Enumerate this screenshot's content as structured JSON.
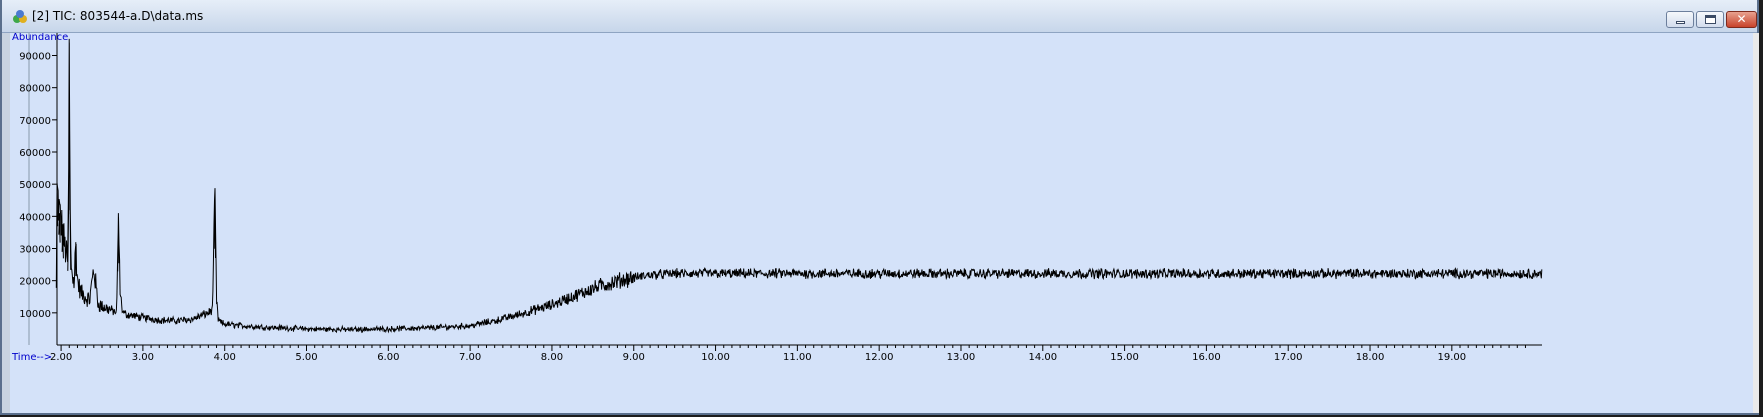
{
  "window": {
    "title": "[2] TIC: 803544-a.D\\data.ms",
    "close_glyph": "✕"
  },
  "icons": {
    "app": "chemstation-app-icon",
    "minimize": "minimize-icon",
    "maximize": "maximize-icon",
    "close": "close-icon"
  },
  "colors": {
    "plot_background": "#d4e2f9",
    "trace": "#000000",
    "axis_label": "#0000cc"
  },
  "chart_data": {
    "type": "line",
    "title": "",
    "xlabel": "Time-->",
    "ylabel": "Abundance",
    "xlim": [
      1.95,
      20.2
    ],
    "ylim": [
      0,
      97000
    ],
    "x_ticks": [
      "2.00",
      "3.00",
      "4.00",
      "5.00",
      "6.00",
      "7.00",
      "8.00",
      "9.00",
      "10.00",
      "11.00",
      "12.00",
      "13.00",
      "14.00",
      "15.00",
      "16.00",
      "17.00",
      "18.00",
      "19.00"
    ],
    "y_ticks": [
      "10000",
      "20000",
      "30000",
      "40000",
      "50000",
      "60000",
      "70000",
      "80000",
      "90000"
    ],
    "grid": false,
    "legend": "none",
    "series": [
      {
        "x": [
          1.95,
          1.98,
          2.02,
          2.05,
          2.08,
          2.09,
          2.1,
          2.11,
          2.12,
          2.14,
          2.16,
          2.18,
          2.2,
          2.22,
          2.25,
          2.3,
          2.35,
          2.4,
          2.45,
          2.5,
          2.6,
          2.68,
          2.7,
          2.72,
          2.74,
          2.76,
          2.8,
          2.9,
          3.0,
          3.2,
          3.4,
          3.6,
          3.8,
          3.85,
          3.88,
          3.9,
          3.92,
          3.95,
          4.0,
          4.2,
          4.5,
          5.0,
          5.5,
          6.0,
          6.5,
          7.0,
          7.3,
          7.6,
          8.0,
          8.3,
          8.6,
          8.9,
          9.2,
          9.5,
          9.8,
          10.0,
          11.0,
          12.0,
          13.0,
          14.0,
          15.0,
          16.0,
          17.0,
          18.0,
          19.0,
          20.1
        ],
        "values": [
          48000,
          41000,
          35000,
          30000,
          26000,
          40000,
          94000,
          42000,
          26000,
          22000,
          19000,
          32000,
          20000,
          18000,
          16000,
          15000,
          14000,
          24000,
          13000,
          12000,
          11000,
          10000,
          41000,
          18000,
          12000,
          10000,
          9500,
          9000,
          8500,
          7800,
          7500,
          8000,
          10000,
          11000,
          47000,
          14000,
          8000,
          7000,
          6500,
          6000,
          5500,
          5000,
          4800,
          5000,
          5300,
          6000,
          7500,
          9500,
          12500,
          15500,
          18500,
          20500,
          21800,
          22200,
          22200,
          22200,
          22200,
          22200,
          22200,
          22200,
          22200,
          22200,
          22200,
          22200,
          22200,
          22200
        ]
      }
    ]
  }
}
